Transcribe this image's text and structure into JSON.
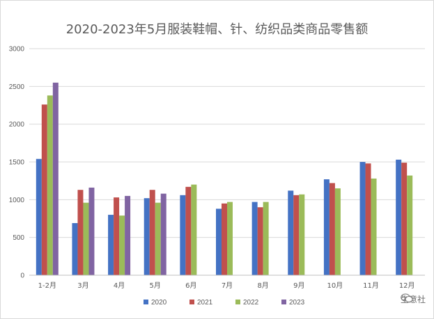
{
  "chart_data": {
    "type": "bar",
    "title": "2020-2023年5月服装鞋帽、针、纺织品类商品零售额",
    "xlabel": "",
    "ylabel": "",
    "ylim": [
      0,
      3000
    ],
    "yticks": [
      0,
      500,
      1000,
      1500,
      2000,
      2500,
      3000
    ],
    "grid": true,
    "legend_position": "bottom",
    "categories": [
      "1-2月",
      "3月",
      "4月",
      "5月",
      "6月",
      "7月",
      "8月",
      "9月",
      "10月",
      "11月",
      "12月"
    ],
    "series": [
      {
        "name": "2020",
        "color": "#4472c4",
        "values": [
          1540,
          690,
          800,
          1020,
          1060,
          880,
          970,
          1120,
          1270,
          1500,
          1530
        ]
      },
      {
        "name": "2021",
        "color": "#c0504d",
        "values": [
          2260,
          1130,
          1030,
          1130,
          1170,
          950,
          900,
          1060,
          1220,
          1480,
          1490
        ]
      },
      {
        "name": "2022",
        "color": "#9bbb59",
        "values": [
          2380,
          960,
          790,
          960,
          1200,
          970,
          970,
          1070,
          1150,
          1280,
          1320
        ]
      },
      {
        "name": "2023",
        "color": "#8064a2",
        "values": [
          2550,
          1160,
          1050,
          1080,
          null,
          null,
          null,
          null,
          null,
          null,
          null
        ]
      }
    ]
  },
  "watermark": {
    "icon": "wechat-icon",
    "text": "生意社"
  }
}
